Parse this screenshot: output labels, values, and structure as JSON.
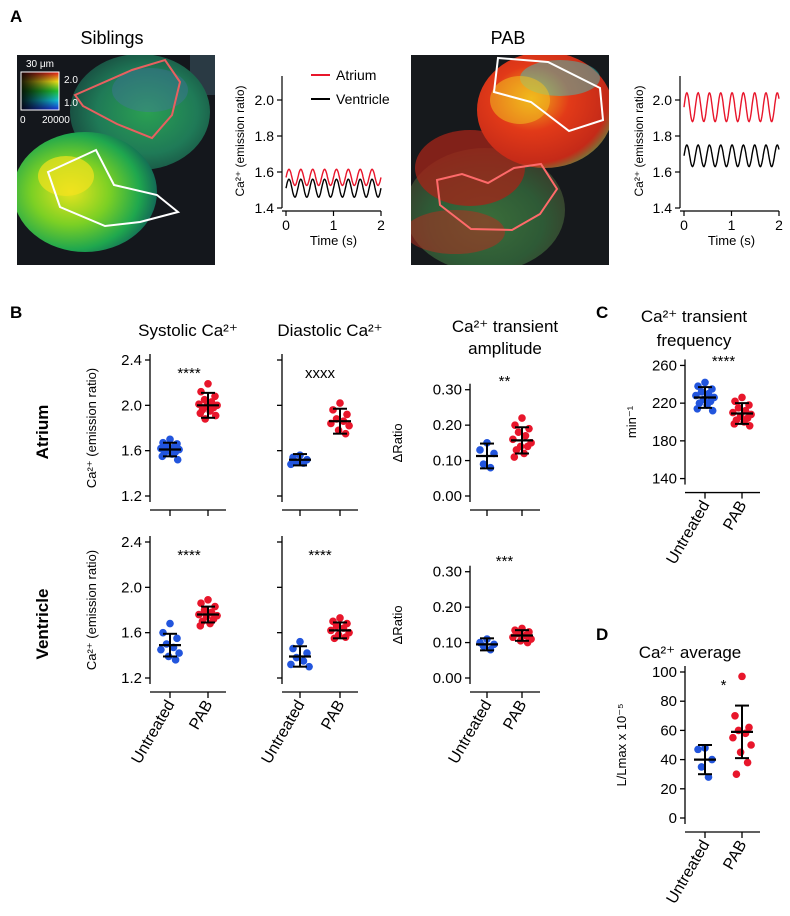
{
  "panel_labels": {
    "a": "A",
    "b": "B",
    "c": "C",
    "d": "D"
  },
  "colors": {
    "untreated": "#2255dd",
    "pab": "#e8162b",
    "atrium_trace": "#e8162b",
    "ventricle_trace": "#000000"
  },
  "panel_a": {
    "siblings_title": "Siblings",
    "pab_title": "PAB",
    "scalebar_label": "30 μm",
    "colorbar": {
      "top_label": "2.0",
      "bottom_label": "1.0",
      "min_label": "0",
      "max_label": "20000"
    },
    "legend": {
      "atrium": "Atrium",
      "ventricle": "Ventricle"
    },
    "trace_xlabel": "Time (s)",
    "trace_ylabel": "Ca²⁺ (emission ratio)"
  },
  "panel_b": {
    "col_titles": {
      "systolic": "Systolic Ca²⁺",
      "diastolic": "Diastolic Ca²⁺",
      "amplitude_line1": "Ca²⁺ transient",
      "amplitude_line2": "amplitude"
    },
    "row_labels": {
      "atrium": "Atrium",
      "ventricle": "Ventricle"
    },
    "ylabel_ratio": "Ca²⁺ (emission ratio)",
    "ylabel_delta": "ΔRatio"
  },
  "panel_c": {
    "title_line1": "Ca²⁺ transient",
    "title_line2": "frequency",
    "ylabel": "min⁻¹"
  },
  "panel_d": {
    "title": "Ca²⁺ average",
    "ylabel": "L/Lmax x 10⁻⁵"
  },
  "chart_data": [
    {
      "id": "trace-siblings",
      "type": "line",
      "x_range": [
        0,
        2
      ],
      "ylim": [
        1.4,
        2.1
      ],
      "xticks": [
        0,
        1,
        2
      ],
      "yticks": [
        1.4,
        1.6,
        1.8,
        2.0
      ],
      "series": [
        {
          "name": "Atrium",
          "mean": 1.57,
          "amplitude": 0.045,
          "frequency_hz": 4
        },
        {
          "name": "Ventricle",
          "mean": 1.51,
          "amplitude": 0.05,
          "frequency_hz": 4
        }
      ]
    },
    {
      "id": "trace-pab",
      "type": "line",
      "x_range": [
        0,
        2
      ],
      "ylim": [
        1.4,
        2.1
      ],
      "xticks": [
        0,
        1,
        2
      ],
      "yticks": [
        1.4,
        1.6,
        1.8,
        2.0
      ],
      "series": [
        {
          "name": "Atrium",
          "mean": 1.96,
          "amplitude": 0.08,
          "frequency_hz": 4.2
        },
        {
          "name": "Ventricle",
          "mean": 1.69,
          "amplitude": 0.06,
          "frequency_hz": 4.2
        }
      ]
    },
    {
      "id": "atrium-systolic",
      "type": "scatter",
      "categories": [
        "Untreated",
        "PAB"
      ],
      "ylim": [
        1.2,
        2.4
      ],
      "yticks": [
        1.2,
        1.6,
        2.0,
        2.4
      ],
      "significance": "****",
      "groups": [
        {
          "name": "Untreated",
          "mean": 1.61,
          "sd": 0.06,
          "values": [
            1.7,
            1.67,
            1.66,
            1.64,
            1.63,
            1.62,
            1.61,
            1.6,
            1.59,
            1.58,
            1.57,
            1.55,
            1.52
          ]
        },
        {
          "name": "PAB",
          "mean": 2.0,
          "sd": 0.11,
          "values": [
            2.19,
            2.12,
            2.08,
            2.05,
            2.03,
            2.01,
            2.0,
            1.99,
            1.98,
            1.96,
            1.95,
            1.93,
            1.91,
            1.88
          ]
        }
      ]
    },
    {
      "id": "atrium-diastolic",
      "type": "scatter",
      "categories": [
        "Untreated",
        "PAB"
      ],
      "ylim": [
        1.2,
        2.4
      ],
      "yticks": [
        1.2,
        1.6,
        2.0,
        2.4
      ],
      "significance": "xxxx",
      "groups": [
        {
          "name": "Untreated",
          "mean": 1.52,
          "sd": 0.05,
          "values": [
            1.56,
            1.54,
            1.52,
            1.5,
            1.49,
            1.48
          ]
        },
        {
          "name": "PAB",
          "mean": 1.86,
          "sd": 0.11,
          "values": [
            2.02,
            1.96,
            1.92,
            1.88,
            1.86,
            1.84,
            1.82,
            1.78,
            1.75
          ]
        }
      ]
    },
    {
      "id": "atrium-amplitude",
      "type": "scatter",
      "categories": [
        "Untreated",
        "PAB"
      ],
      "ylim": [
        0,
        0.35
      ],
      "yticks": [
        0,
        0.1,
        0.2,
        0.3
      ],
      "significance": "**",
      "groups": [
        {
          "name": "Untreated",
          "mean": 0.113,
          "sd": 0.035,
          "values": [
            0.15,
            0.13,
            0.12,
            0.09,
            0.08
          ]
        },
        {
          "name": "PAB",
          "mean": 0.157,
          "sd": 0.037,
          "values": [
            0.22,
            0.2,
            0.19,
            0.18,
            0.17,
            0.16,
            0.15,
            0.14,
            0.14,
            0.13,
            0.12,
            0.11
          ]
        }
      ]
    },
    {
      "id": "ventricle-systolic",
      "type": "scatter",
      "categories": [
        "Untreated",
        "PAB"
      ],
      "ylim": [
        1.2,
        2.4
      ],
      "yticks": [
        1.2,
        1.6,
        2.0,
        2.4
      ],
      "significance": "****",
      "groups": [
        {
          "name": "Untreated",
          "mean": 1.49,
          "sd": 0.1,
          "values": [
            1.68,
            1.6,
            1.55,
            1.5,
            1.47,
            1.45,
            1.42,
            1.39,
            1.36
          ]
        },
        {
          "name": "PAB",
          "mean": 1.76,
          "sd": 0.07,
          "values": [
            1.89,
            1.86,
            1.83,
            1.8,
            1.78,
            1.76,
            1.75,
            1.74,
            1.72,
            1.7,
            1.68,
            1.66
          ]
        }
      ]
    },
    {
      "id": "ventricle-diastolic",
      "type": "scatter",
      "categories": [
        "Untreated",
        "PAB"
      ],
      "ylim": [
        1.2,
        2.4
      ],
      "yticks": [
        1.2,
        1.6,
        2.0,
        2.4
      ],
      "significance": "****",
      "groups": [
        {
          "name": "Untreated",
          "mean": 1.39,
          "sd": 0.09,
          "values": [
            1.52,
            1.46,
            1.42,
            1.38,
            1.35,
            1.32,
            1.3
          ]
        },
        {
          "name": "PAB",
          "mean": 1.62,
          "sd": 0.07,
          "values": [
            1.73,
            1.7,
            1.68,
            1.66,
            1.64,
            1.62,
            1.6,
            1.58,
            1.56,
            1.55
          ]
        }
      ]
    },
    {
      "id": "ventricle-amplitude",
      "type": "scatter",
      "categories": [
        "Untreated",
        "PAB"
      ],
      "ylim": [
        0,
        0.35
      ],
      "yticks": [
        0,
        0.1,
        0.2,
        0.3
      ],
      "significance": "***",
      "groups": [
        {
          "name": "Untreated",
          "mean": 0.095,
          "sd": 0.017,
          "values": [
            0.11,
            0.1,
            0.095,
            0.09,
            0.08
          ]
        },
        {
          "name": "PAB",
          "mean": 0.12,
          "sd": 0.015,
          "values": [
            0.14,
            0.135,
            0.13,
            0.125,
            0.12,
            0.115,
            0.11,
            0.105,
            0.1
          ]
        }
      ]
    },
    {
      "id": "frequency",
      "type": "scatter",
      "categories": [
        "Untreated",
        "PAB"
      ],
      "ylim": [
        130,
        270
      ],
      "yticks": [
        140,
        180,
        220,
        260
      ],
      "significance": "****",
      "groups": [
        {
          "name": "Untreated",
          "mean": 226,
          "sd": 11,
          "values": [
            242,
            238,
            235,
            232,
            230,
            228,
            226,
            224,
            222,
            220,
            218,
            214,
            212
          ]
        },
        {
          "name": "PAB",
          "mean": 209,
          "sd": 11,
          "values": [
            226,
            222,
            218,
            215,
            212,
            210,
            208,
            206,
            204,
            202,
            200,
            198,
            196
          ]
        }
      ]
    },
    {
      "id": "average",
      "type": "scatter",
      "categories": [
        "Untreated",
        "PAB"
      ],
      "ylim": [
        0,
        100
      ],
      "yticks": [
        0,
        20,
        40,
        60,
        80,
        100
      ],
      "significance": "*",
      "groups": [
        {
          "name": "Untreated",
          "mean": 40,
          "sd": 10,
          "values": [
            48,
            47,
            40,
            35,
            28
          ]
        },
        {
          "name": "PAB",
          "mean": 59,
          "sd": 18,
          "values": [
            97,
            70,
            62,
            60,
            58,
            55,
            50,
            45,
            38,
            30
          ]
        }
      ]
    }
  ]
}
